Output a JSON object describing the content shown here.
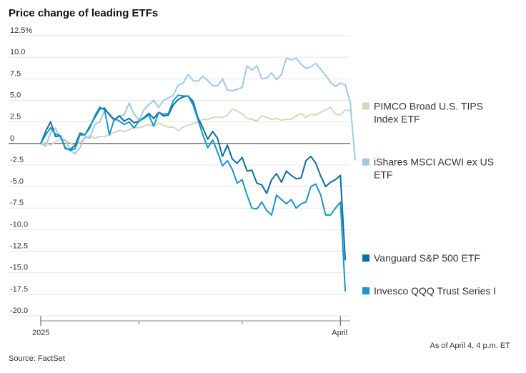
{
  "chart_data": {
    "type": "line",
    "title": "Price change of leading ETFs",
    "xlabel": "",
    "ylabel": "",
    "ylim": [
      -20,
      12.5
    ],
    "y_ticks": [
      "12.5%",
      "10.0",
      "7.5",
      "5.0",
      "2.5",
      "0",
      "-2.5",
      "-5.0",
      "-7.5",
      "-10.0",
      "-12.5",
      "-15.0",
      "-17.5",
      "-20.0"
    ],
    "y_tick_values": [
      12.5,
      10,
      7.5,
      5,
      2.5,
      0,
      -2.5,
      -5,
      -7.5,
      -10,
      -12.5,
      -15,
      -17.5,
      -20
    ],
    "x_tick_labels": [
      "2025",
      "April"
    ],
    "x_tick_positions": [
      0,
      61
    ],
    "x_minor_ticks": [
      20,
      41
    ],
    "x_max": 63,
    "grid": true,
    "legend_placement": "right",
    "series": [
      {
        "name": "PIMCO Broad U.S. TIPS Index ETF",
        "color": "#dcd5b8",
        "values": [
          0,
          0.1,
          -0.2,
          0.2,
          0.5,
          0.3,
          0.1,
          -0.3,
          0.2,
          0.6,
          0.9,
          0.6,
          0.8,
          0.8,
          1.0,
          1.3,
          1.5,
          1.4,
          1.6,
          1.9,
          1.8,
          2.0,
          2.2,
          2.0,
          2.4,
          2.1,
          1.9,
          1.9,
          1.5,
          1.9,
          2.1,
          2.3,
          2.5,
          2.8,
          2.8,
          3.0,
          3.1,
          3.0,
          3.3,
          4.0,
          3.8,
          3.4,
          2.9,
          2.8,
          2.6,
          3.2,
          3.0,
          2.8,
          2.9,
          2.7,
          2.8,
          2.8,
          3.2,
          3.5,
          3.0,
          3.4,
          3.3,
          3.6,
          3.9,
          4.2,
          3.4,
          3.3,
          3.9,
          3.8
        ],
        "labelY": 3.6
      },
      {
        "name": "iShares MSCI ACWI ex US ETF",
        "color": "#9ccbe6",
        "values": [
          0,
          -0.3,
          1.2,
          1.8,
          0.6,
          0.4,
          -0.8,
          -1.2,
          -0.5,
          0.8,
          0.6,
          2.2,
          2.5,
          3.8,
          3.5,
          2.8,
          3.2,
          3.3,
          4.7,
          3.4,
          2.7,
          3.9,
          4.5,
          5.0,
          4.2,
          5.0,
          5.3,
          5.6,
          6.8,
          7.0,
          8.0,
          7.3,
          7.2,
          7.8,
          7.3,
          6.7,
          6.7,
          7.5,
          6.2,
          6.1,
          6.3,
          6.5,
          9.0,
          8.5,
          9.0,
          7.5,
          7.6,
          8.2,
          7.4,
          8.0,
          9.9,
          9.7,
          9.9,
          9.2,
          8.7,
          8.9,
          9.3,
          8.6,
          7.9,
          7.1,
          6.6,
          7.0,
          6.8,
          4.8,
          -1.9
        ],
        "labelY": -2.9
      },
      {
        "name": "Vanguard S&P 500 ETF",
        "color": "#0b6e9e",
        "values": [
          0,
          1.4,
          2.5,
          0.8,
          0.9,
          -0.6,
          -0.7,
          -0.2,
          1.2,
          1.0,
          2.0,
          3.0,
          4.0,
          4.1,
          3.3,
          2.7,
          3.2,
          2.6,
          2.9,
          2.4,
          2.6,
          3.0,
          3.5,
          2.9,
          3.6,
          3.2,
          3.3,
          4.5,
          5.1,
          5.4,
          5.5,
          4.9,
          3.0,
          1.8,
          0.5,
          1.4,
          0.6,
          -1.5,
          -0.2,
          -1.8,
          -2.3,
          -1.6,
          -3.2,
          -3.1,
          -4.6,
          -4.8,
          -5.8,
          -4.2,
          -3.5,
          -4.5,
          -3.2,
          -3.7,
          -4.1,
          -4.0,
          -2.0,
          -1.5,
          -2.3,
          -3.8,
          -5.0,
          -4.5,
          -4.2,
          -3.7,
          -13.5
        ],
        "labelY": -13.3
      },
      {
        "name": "Invesco QQQ Trust Series I",
        "color": "#1596cc",
        "values": [
          0,
          1.0,
          1.8,
          1.1,
          0.9,
          -0.5,
          -0.8,
          -0.6,
          1.0,
          1.0,
          1.8,
          3.2,
          4.2,
          3.9,
          1.0,
          2.9,
          2.6,
          2.2,
          2.5,
          1.8,
          2.6,
          2.9,
          3.3,
          2.0,
          3.6,
          3.4,
          3.5,
          5.0,
          5.6,
          5.5,
          5.5,
          4.5,
          2.8,
          1.0,
          -0.5,
          0.4,
          -1.0,
          -2.6,
          -2.0,
          -3.0,
          -4.6,
          -4.2,
          -6.0,
          -7.5,
          -7.6,
          -6.8,
          -7.8,
          -8.3,
          -6.0,
          -6.5,
          -7.0,
          -6.5,
          -7.5,
          -7.0,
          -6.8,
          -5.0,
          -4.7,
          -6.0,
          -8.3,
          -8.3,
          -7.5,
          -6.8,
          -17.1
        ],
        "labelY": -17.1
      }
    ],
    "annotation": "As of April 4, 4 p.m. ET",
    "source": "Source: FactSet"
  }
}
